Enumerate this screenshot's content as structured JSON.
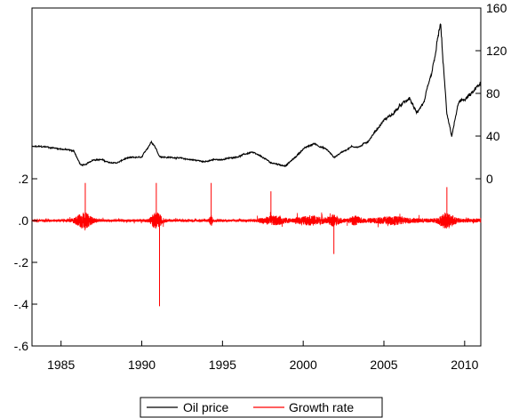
{
  "chart_data": {
    "type": "line",
    "title": "",
    "x_axis": {
      "range": [
        1983.2,
        2011.0
      ],
      "ticks": [
        1985,
        1990,
        1995,
        2000,
        2005,
        2010
      ],
      "tick_labels": [
        "1985",
        "1990",
        "1995",
        "2000",
        "2005",
        "2010"
      ]
    },
    "left_axis": {
      "series": "Growth rate",
      "range": [
        -0.6,
        0.2
      ],
      "ticks": [
        -0.6,
        -0.4,
        -0.2,
        0.0,
        0.2
      ],
      "tick_labels": [
        "-.6",
        "-.4",
        "-.2",
        ".0",
        ".2"
      ]
    },
    "right_axis": {
      "series": "Oil price",
      "range": [
        0,
        160
      ],
      "ticks": [
        0,
        40,
        80,
        120,
        160
      ],
      "tick_labels": [
        "0",
        "40",
        "80",
        "120",
        "160"
      ]
    },
    "series": [
      {
        "name": "Oil price",
        "color": "#000000",
        "axis": "right",
        "x": [
          1983.2,
          1984.0,
          1985.0,
          1985.8,
          1986.2,
          1986.5,
          1987.0,
          1987.5,
          1988.0,
          1988.5,
          1989.0,
          1989.5,
          1990.0,
          1990.6,
          1990.8,
          1991.1,
          1991.5,
          1992.0,
          1993.0,
          1994.0,
          1994.5,
          1995.0,
          1996.0,
          1996.8,
          1997.5,
          1998.0,
          1998.9,
          1999.5,
          2000.0,
          2000.7,
          2001.5,
          2001.9,
          2002.5,
          2003.0,
          2003.5,
          2004.0,
          2004.5,
          2005.0,
          2005.5,
          2006.0,
          2006.6,
          2007.0,
          2007.5,
          2008.0,
          2008.5,
          2008.9,
          2009.2,
          2009.6,
          2010.0,
          2010.5,
          2011.0
        ],
        "y": [
          30,
          30,
          28,
          26,
          13,
          13,
          18,
          18,
          15,
          15,
          19,
          20,
          20,
          35,
          31,
          21,
          20,
          20,
          18,
          16,
          18,
          18,
          21,
          25,
          20,
          15,
          12,
          20,
          28,
          33,
          27,
          20,
          26,
          30,
          30,
          35,
          45,
          55,
          60,
          68,
          75,
          62,
          72,
          100,
          145,
          60,
          40,
          70,
          75,
          80,
          90
        ]
      },
      {
        "name": "Growth rate",
        "color": "#ff0000",
        "axis": "left",
        "x": [
          1986.5,
          1990.9,
          1991.1,
          1994.3,
          1998.0,
          2001.9,
          2008.9
        ],
        "y": [
          0.18,
          0.18,
          -0.41,
          0.18,
          0.14,
          -0.16,
          0.16
        ]
      }
    ],
    "legend": {
      "position": "bottom-center",
      "entries": [
        "Oil price",
        "Growth rate"
      ]
    },
    "grid": false
  }
}
